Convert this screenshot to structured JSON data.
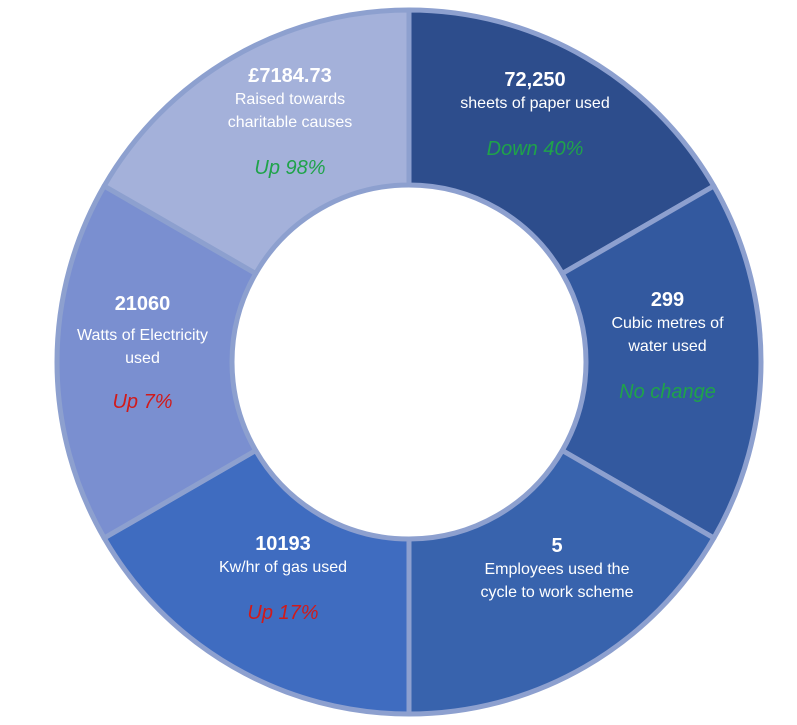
{
  "chart_data": {
    "type": "donut",
    "segments": [
      {
        "value_text": "72,250",
        "description": "sheets of paper used",
        "change": "Down 40%",
        "change_color": "#1fa34a",
        "color": "#2d4d8c"
      },
      {
        "value_text": "299",
        "description": "Cubic metres of water used",
        "change": "No change",
        "change_color": "#1fa34a",
        "color": "#33599f"
      },
      {
        "value_text": "5",
        "description": "Employees used the cycle to work scheme",
        "change": "",
        "change_color": "#1fa34a",
        "color": "#3863ad"
      },
      {
        "value_text": "10193",
        "description": "Kw/hr of gas used",
        "change": "Up 17%",
        "change_color": "#d11a1a",
        "color": "#3f6cc0"
      },
      {
        "value_text": "21060",
        "description": "Watts of Electricity used",
        "change": "Up 7%",
        "change_color": "#d11a1a",
        "color": "#7a8fd0"
      },
      {
        "value_text": "£7184.73",
        "description": "Raised towards charitable causes",
        "change": "Up 98%",
        "change_color": "#1fa34a",
        "color": "#a4b1da"
      }
    ]
  }
}
